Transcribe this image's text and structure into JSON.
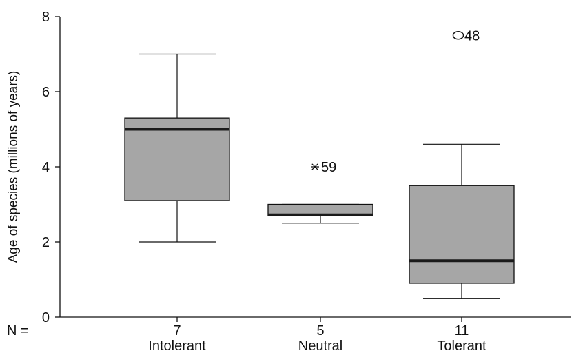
{
  "chart_data": {
    "type": "boxplot",
    "title": "",
    "ylabel": "Age of species (millions of years)",
    "xlabel": "",
    "ylim": [
      0,
      8
    ],
    "yticks": [
      "0",
      "2",
      "4",
      "6",
      "8"
    ],
    "n_prefix": "N =",
    "box_color": "#a6a6a6",
    "categories": [
      {
        "label": "Intolerant",
        "n": "7",
        "whisker_low": 2.0,
        "q1": 3.1,
        "median": 5.0,
        "q3": 5.3,
        "whisker_high": 7.0,
        "outliers": []
      },
      {
        "label": "Neutral",
        "n": "5",
        "whisker_low": 2.5,
        "q1": 2.7,
        "median": 2.72,
        "q3": 3.0,
        "whisker_high": 3.0,
        "outliers": [
          {
            "value": 4.0,
            "marker": "star",
            "label": "59"
          }
        ]
      },
      {
        "label": "Tolerant",
        "n": "11",
        "whisker_low": 0.5,
        "q1": 0.9,
        "median": 1.5,
        "q3": 3.5,
        "whisker_high": 4.6,
        "outliers": [
          {
            "value": 7.5,
            "marker": "circle",
            "label": "48"
          }
        ]
      }
    ]
  }
}
